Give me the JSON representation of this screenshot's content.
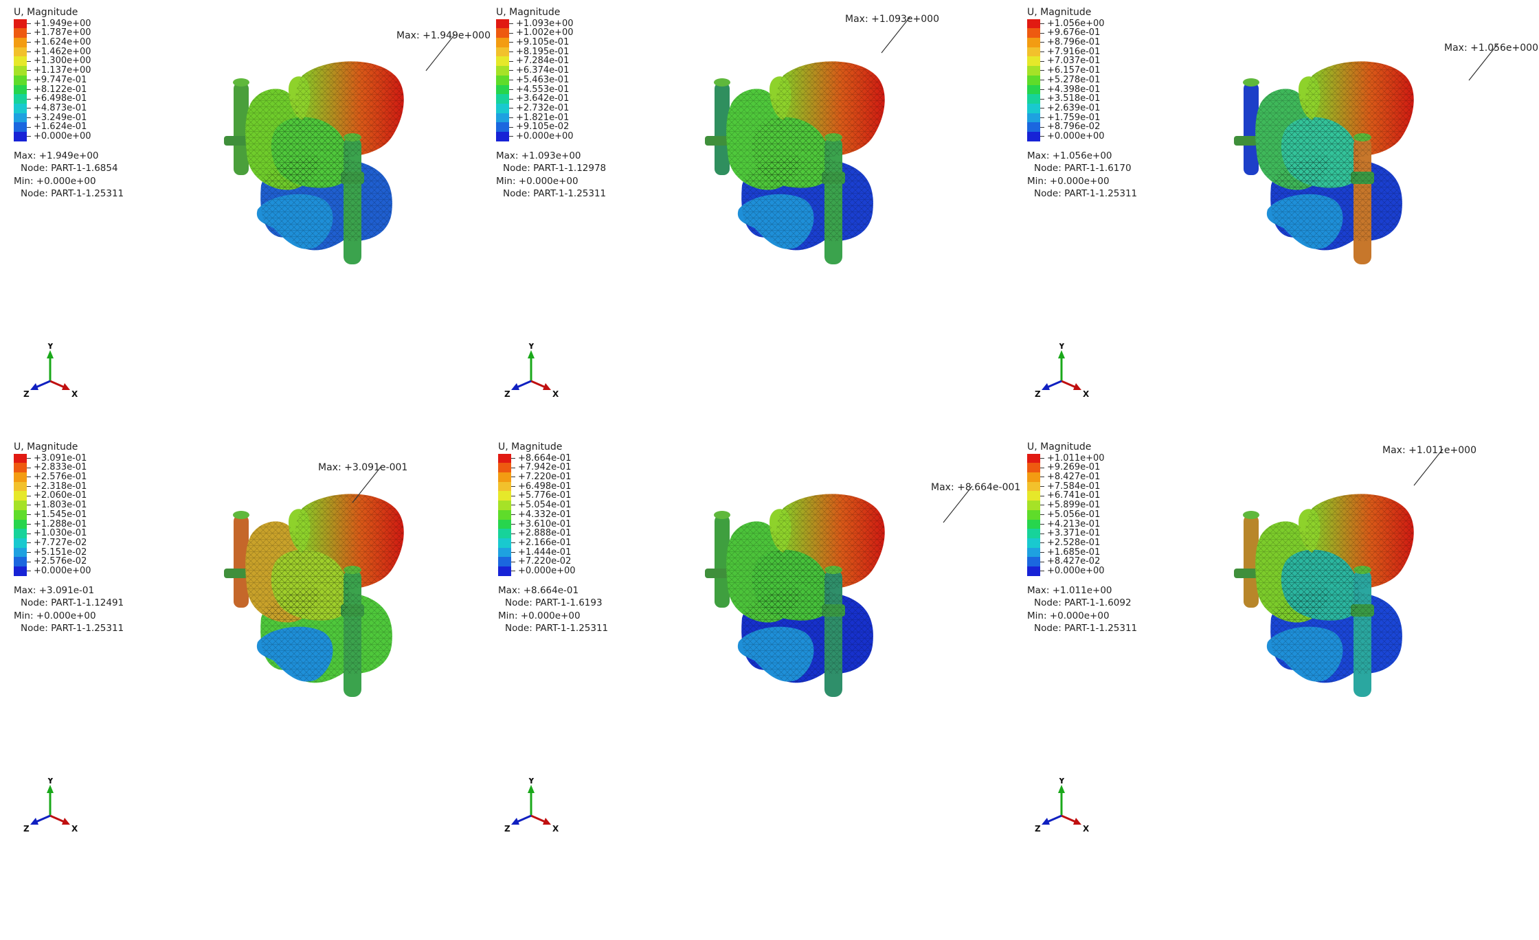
{
  "colors": {
    "scale": [
      "#e11a12",
      "#ee5a10",
      "#f39c12",
      "#f2c12c",
      "#e6e82a",
      "#a6e227",
      "#5fdc2a",
      "#27d54d",
      "#17d39a",
      "#19c9cf",
      "#1ea1e0",
      "#1b67df",
      "#1723d6"
    ]
  },
  "panels": [
    {
      "legend_title": "U, Magnitude",
      "legend_values": [
        "+1.949e+00",
        "+1.787e+00",
        "+1.624e+00",
        "+1.462e+00",
        "+1.300e+00",
        "+1.137e+00",
        "+9.747e-01",
        "+8.122e-01",
        "+6.498e-01",
        "+4.873e-01",
        "+3.249e-01",
        "+1.624e-01",
        "+0.000e+00"
      ],
      "max_line": "Max: +1.949e+00",
      "max_node": "Node: PART-1-1.6854",
      "min_line": "Min: +0.000e+00",
      "min_node": "Node: PART-1-1.25311",
      "callout": "Max: +1.949e+000",
      "triad": {
        "y": "Y",
        "z": "Z",
        "x": "X"
      }
    },
    {
      "legend_title": "U, Magnitude",
      "legend_values": [
        "+1.093e+00",
        "+1.002e+00",
        "+9.105e-01",
        "+8.195e-01",
        "+7.284e-01",
        "+6.374e-01",
        "+5.463e-01",
        "+4.553e-01",
        "+3.642e-01",
        "+2.732e-01",
        "+1.821e-01",
        "+9.105e-02",
        "+0.000e+00"
      ],
      "max_line": "Max: +1.093e+00",
      "max_node": "Node: PART-1-1.12978",
      "min_line": "Min: +0.000e+00",
      "min_node": "Node: PART-1-1.25311",
      "callout": "Max: +1.093e+000",
      "triad": {
        "y": "Y",
        "z": "Z",
        "x": "X"
      }
    },
    {
      "legend_title": "U, Magnitude",
      "legend_values": [
        "+1.056e+00",
        "+9.676e-01",
        "+8.796e-01",
        "+7.916e-01",
        "+7.037e-01",
        "+6.157e-01",
        "+5.278e-01",
        "+4.398e-01",
        "+3.518e-01",
        "+2.639e-01",
        "+1.759e-01",
        "+8.796e-02",
        "+0.000e+00"
      ],
      "max_line": "Max: +1.056e+00",
      "max_node": "Node: PART-1-1.6170",
      "min_line": "Min: +0.000e+00",
      "min_node": "Node: PART-1-1.25311",
      "callout": "Max: +1.056e+000",
      "triad": {
        "y": "Y",
        "z": "Z",
        "x": "X"
      }
    },
    {
      "legend_title": "U, Magnitude",
      "legend_values": [
        "+3.091e-01",
        "+2.833e-01",
        "+2.576e-01",
        "+2.318e-01",
        "+2.060e-01",
        "+1.803e-01",
        "+1.545e-01",
        "+1.288e-01",
        "+1.030e-01",
        "+7.727e-02",
        "+5.151e-02",
        "+2.576e-02",
        "+0.000e+00"
      ],
      "max_line": "Max: +3.091e-01",
      "max_node": "Node: PART-1-1.12491",
      "min_line": "Min: +0.000e+00",
      "min_node": "Node: PART-1-1.25311",
      "callout": "Max: +3.091e-001",
      "triad": {
        "y": "Y",
        "z": "Z",
        "x": "X"
      }
    },
    {
      "legend_title": "U, Magnitude",
      "legend_values": [
        "+8.664e-01",
        "+7.942e-01",
        "+7.220e-01",
        "+6.498e-01",
        "+5.776e-01",
        "+5.054e-01",
        "+4.332e-01",
        "+3.610e-01",
        "+2.888e-01",
        "+2.166e-01",
        "+1.444e-01",
        "+7.220e-02",
        "+0.000e+00"
      ],
      "max_line": "Max: +8.664e-01",
      "max_node": "Node: PART-1-1.6193",
      "min_line": "Min: +0.000e+00",
      "min_node": "Node: PART-1-1.25311",
      "callout": "Max: +8.664e-001",
      "triad": {
        "y": "Y",
        "z": "Z",
        "x": "X"
      }
    },
    {
      "legend_title": "U, Magnitude",
      "legend_values": [
        "+1.011e+00",
        "+9.269e-01",
        "+8.427e-01",
        "+7.584e-01",
        "+6.741e-01",
        "+5.899e-01",
        "+5.056e-01",
        "+4.213e-01",
        "+3.371e-01",
        "+2.528e-01",
        "+1.685e-01",
        "+8.427e-02",
        "+0.000e+00"
      ],
      "max_line": "Max: +1.011e+00",
      "max_node": "Node: PART-1-1.6092",
      "min_line": "Min: +0.000e+00",
      "min_node": "Node: PART-1-1.25311",
      "callout": "Max: +1.011e+000",
      "triad": {
        "y": "Y",
        "z": "Z",
        "x": "X"
      }
    }
  ]
}
